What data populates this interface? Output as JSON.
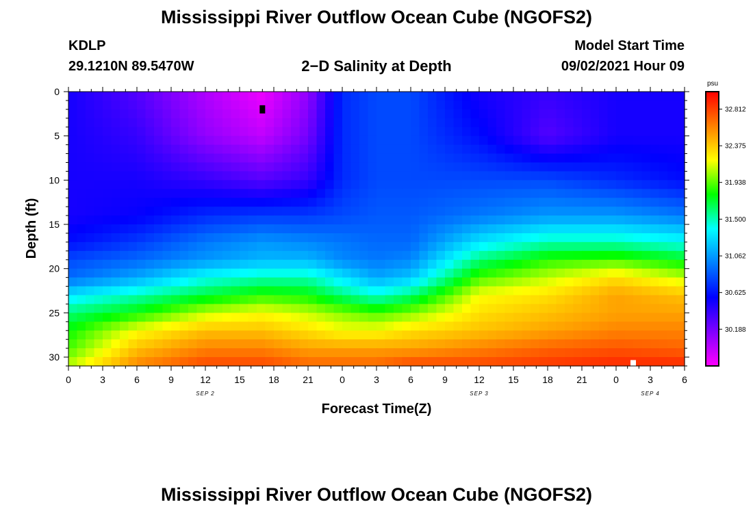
{
  "header": {
    "title": "Mississippi River Outflow Ocean Cube (NGOFS2)",
    "station": "KDLP",
    "coords": "29.1210N  89.5470W",
    "subtitle": "2−D Salinity at Depth",
    "model_start_label": "Model Start Time",
    "model_start_value": "09/02/2021 Hour 09"
  },
  "footer": {
    "title": "Mississippi River Outflow Ocean Cube (NGOFS2)"
  },
  "chart_data": {
    "type": "heatmap",
    "title": "2−D Salinity at Depth",
    "xlabel": "Forecast Time(Z)",
    "ylabel": "Depth (ft)",
    "xlim": [
      0,
      54
    ],
    "ylim": [
      31,
      0
    ],
    "x_tick_labels": [
      "0",
      "3",
      "6",
      "9",
      "12",
      "15",
      "18",
      "21",
      "0",
      "3",
      "6",
      "9",
      "12",
      "15",
      "18",
      "21",
      "0",
      "3",
      "6"
    ],
    "y_tick_labels": [
      "0",
      "5",
      "10",
      "15",
      "20",
      "25",
      "30"
    ],
    "date_labels": [
      {
        "text": "SEP 2",
        "hour": 12
      },
      {
        "text": "SEP 3",
        "hour": 36
      },
      {
        "text": "SEP 4",
        "hour": 51
      }
    ],
    "colorbar": {
      "unit": "psu",
      "min": 29.75,
      "max": 33.02,
      "ticks": [
        "32.812",
        "32.375",
        "31.938",
        "31.500",
        "31.062",
        "30.625",
        "30.188"
      ],
      "tick_values": [
        32.812,
        32.375,
        31.938,
        31.5,
        31.062,
        30.625,
        30.188
      ],
      "colors": [
        "#ff00ff",
        "#8000ff",
        "#0000ff",
        "#0080ff",
        "#00ffff",
        "#00ff00",
        "#ffff00",
        "#ff8000",
        "#ff0000"
      ]
    },
    "salinity_psu": {
      "depth_ft": [
        0,
        5,
        10,
        14,
        17,
        19,
        21,
        23,
        25,
        27,
        29,
        31
      ],
      "forecast_hour": [
        0,
        6,
        12,
        17,
        21,
        24,
        27,
        30,
        36,
        42,
        48,
        54
      ],
      "values": [
        [
          30.5,
          30.3,
          30.0,
          29.8,
          30.1,
          30.7,
          30.8,
          30.8,
          30.5,
          30.4,
          30.5,
          30.5
        ],
        [
          30.5,
          30.4,
          30.1,
          29.95,
          30.2,
          30.7,
          30.8,
          30.8,
          30.6,
          30.3,
          30.5,
          30.5
        ],
        [
          30.5,
          30.5,
          30.4,
          30.3,
          30.4,
          30.7,
          30.8,
          30.8,
          30.8,
          30.8,
          30.7,
          30.6
        ],
        [
          30.5,
          30.55,
          30.7,
          30.75,
          30.75,
          30.8,
          30.85,
          30.85,
          30.95,
          31.05,
          31.05,
          30.95
        ],
        [
          30.6,
          30.75,
          30.95,
          31.05,
          31.0,
          30.95,
          30.9,
          30.9,
          31.3,
          31.5,
          31.5,
          31.4
        ],
        [
          30.8,
          30.9,
          31.05,
          31.15,
          31.15,
          31.0,
          30.95,
          31.0,
          31.6,
          31.85,
          31.9,
          31.75
        ],
        [
          30.9,
          31.1,
          31.4,
          31.5,
          31.5,
          31.3,
          31.1,
          31.2,
          31.9,
          32.1,
          32.3,
          32.1
        ],
        [
          31.3,
          31.5,
          31.7,
          31.85,
          31.8,
          31.6,
          31.45,
          31.6,
          32.2,
          32.3,
          32.5,
          32.4
        ],
        [
          31.6,
          31.8,
          32.1,
          32.2,
          32.1,
          32.0,
          31.9,
          32.0,
          32.3,
          32.4,
          32.5,
          32.5
        ],
        [
          31.8,
          32.2,
          32.4,
          32.4,
          32.3,
          32.2,
          32.2,
          32.3,
          32.4,
          32.5,
          32.6,
          32.6
        ],
        [
          31.9,
          32.4,
          32.6,
          32.6,
          32.5,
          32.5,
          32.5,
          32.5,
          32.6,
          32.7,
          32.75,
          32.7
        ],
        [
          32.1,
          32.6,
          32.8,
          32.8,
          32.7,
          32.7,
          32.7,
          32.8,
          32.8,
          32.85,
          32.9,
          32.9
        ]
      ]
    },
    "markers": [
      {
        "forecast_hour": 17,
        "depth_ft": 2,
        "color": "#000000"
      },
      {
        "forecast_hour": 49.5,
        "depth_ft": 30.8,
        "color": "#ffffff"
      }
    ]
  }
}
